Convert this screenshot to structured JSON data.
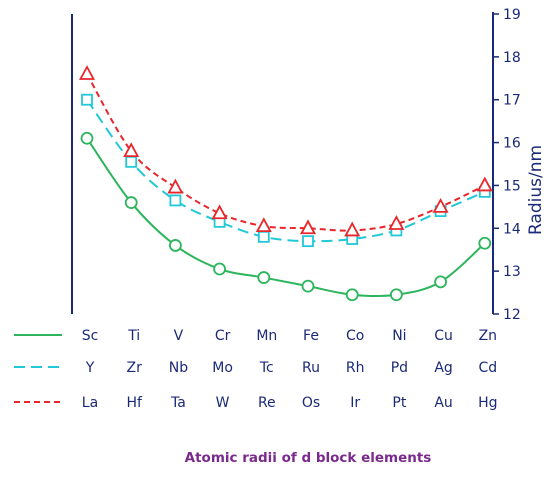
{
  "chart_data": {
    "type": "line",
    "title": "Atomic radii of d block elements",
    "ylabel": "Radius/nm",
    "ylim": [
      12,
      19
    ],
    "yticks": [
      12,
      13,
      14,
      15,
      16,
      17,
      18,
      19
    ],
    "y_axis_position": "right",
    "grid": false,
    "legend_placement": "bottom-left, inline with element rows",
    "series": [
      {
        "name": "",
        "elements": [
          "Sc",
          "Ti",
          "V",
          "Cr",
          "Mn",
          "Fe",
          "Co",
          "Ni",
          "Cu",
          "Zn"
        ],
        "values": [
          16.1,
          14.6,
          13.6,
          13.05,
          12.85,
          12.65,
          12.45,
          12.45,
          12.75,
          13.65
        ],
        "color": "#2db55d",
        "dash": "solid",
        "marker": "circle"
      },
      {
        "name": "",
        "elements": [
          "Y",
          "Zr",
          "Nb",
          "Mo",
          "Tc",
          "Ru",
          "Rh",
          "Pd",
          "Ag",
          "Cd"
        ],
        "values": [
          17.0,
          15.55,
          14.65,
          14.15,
          13.8,
          13.7,
          13.75,
          13.95,
          14.4,
          14.85
        ],
        "color": "#20c8d8",
        "dash": "long-dash",
        "marker": "square"
      },
      {
        "name": "",
        "elements": [
          "La",
          "Hf",
          "Ta",
          "W",
          "Re",
          "Os",
          "Ir",
          "Pt",
          "Au",
          "Hg"
        ],
        "values": [
          17.6,
          15.8,
          14.95,
          14.35,
          14.05,
          14.0,
          13.95,
          14.1,
          14.5,
          15.0
        ],
        "color": "#e8262b",
        "dash": "short-dash",
        "marker": "triangle"
      }
    ]
  }
}
